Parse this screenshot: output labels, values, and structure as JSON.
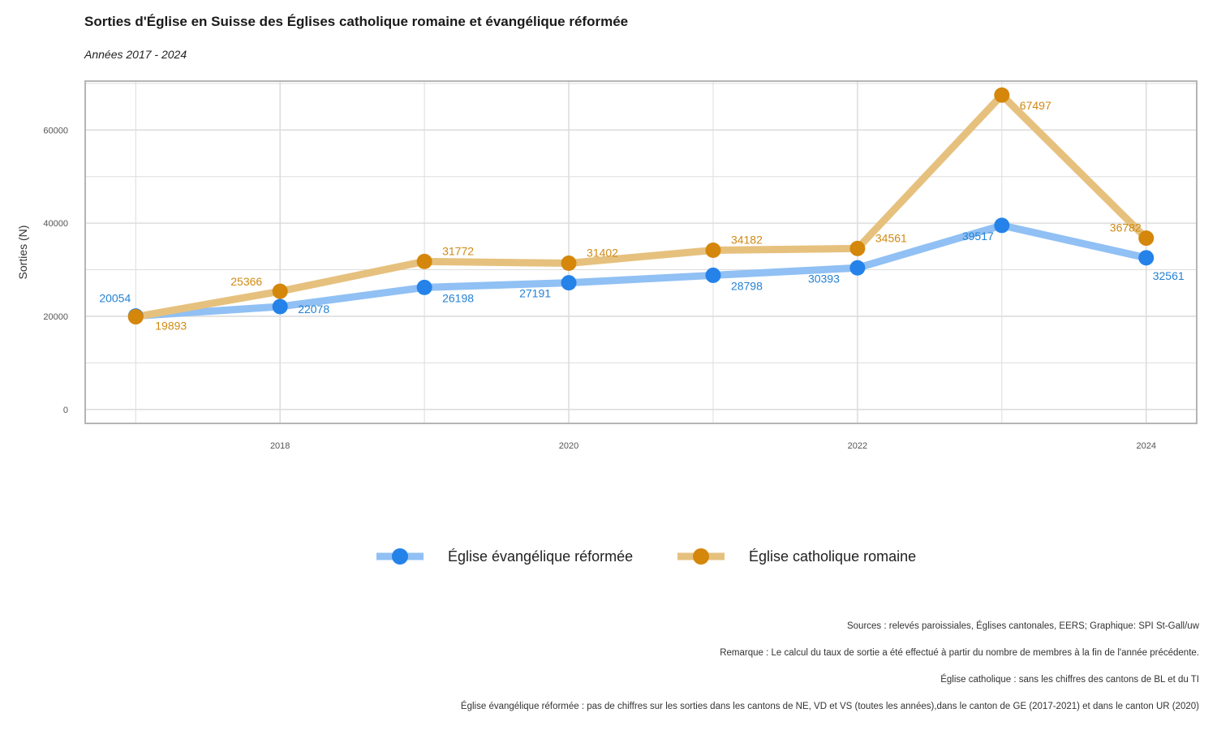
{
  "title": "Sorties d'Église en Suisse des Églises catholique romaine et évangélique réformée",
  "subtitle": "Années 2017 - 2024",
  "colors": {
    "reformed_line": "#90c0f4",
    "reformed_point": "#2582e9",
    "reformed_label": "#2582d3",
    "catholic_line": "#e6c17e",
    "catholic_point": "#d4870b",
    "catholic_label": "#cf8a13",
    "grid": "#dddddd",
    "frame": "#b5b5b5"
  },
  "legend": {
    "reformed": "Église évangélique réformée",
    "catholic": "Église catholique romaine"
  },
  "notes": [
    "Sources : relevés paroissiales, Églises cantonales, EERS; Graphique: SPI St-Gall/uw",
    "Remarque : Le calcul du taux de sortie a été effectué à partir du nombre de membres à la fin de l'année précédente.",
    "Église catholique : sans les chiffres des cantons de BL et du TI",
    "Église évangélique réformée : pas de chiffres sur les sorties dans les cantons de NE, VD et VS (toutes les années),dans le canton de GE (2017-2021) et dans le canton UR (2020)"
  ],
  "chart_data": {
    "type": "line",
    "title": "Sorties d'Église en Suisse des Églises catholique romaine et évangélique réformée",
    "subtitle": "Années 2017 - 2024",
    "xlabel": "",
    "ylabel": "Sorties (N)",
    "x": [
      2017,
      2018,
      2019,
      2020,
      2021,
      2022,
      2023,
      2024
    ],
    "x_ticks": [
      2018,
      2020,
      2022,
      2024
    ],
    "y_ticks": [
      0,
      20000,
      40000,
      60000
    ],
    "xlim": [
      2016.65,
      2024.35
    ],
    "ylim": [
      -3000,
      70500
    ],
    "grid": true,
    "legend_position": "bottom",
    "series": [
      {
        "name": "Église évangélique réformée",
        "values": [
          20054,
          22078,
          26198,
          27191,
          28798,
          30393,
          39517,
          32561
        ]
      },
      {
        "name": "Église catholique romaine",
        "values": [
          19893,
          25366,
          31772,
          31402,
          34182,
          34561,
          67497,
          36782
        ]
      }
    ]
  }
}
